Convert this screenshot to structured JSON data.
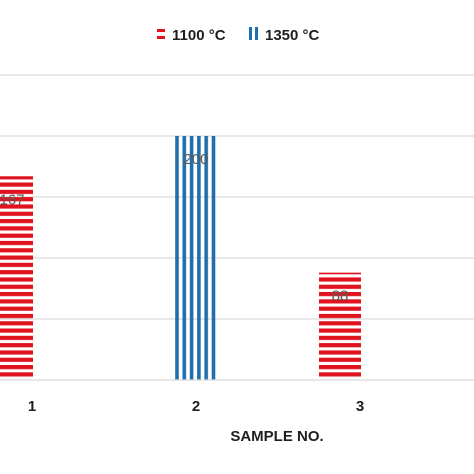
{
  "chart_data": {
    "type": "bar",
    "title": "",
    "xlabel": "SAMPLE NO.",
    "ylabel": "",
    "categories": [
      "1",
      "2",
      "3"
    ],
    "ylim": [
      0,
      250
    ],
    "grid": true,
    "legend_position": "top",
    "series": [
      {
        "name": "1100 °C",
        "color": "#e0141e",
        "pattern": "horizontal-stripes",
        "values": [
          167,
          null,
          88
        ]
      },
      {
        "name": "1350 °C",
        "color": "#1f6fae",
        "pattern": "vertical-stripes",
        "values": [
          null,
          200,
          null
        ]
      }
    ],
    "data_labels": [
      "167",
      "200",
      "88"
    ]
  }
}
